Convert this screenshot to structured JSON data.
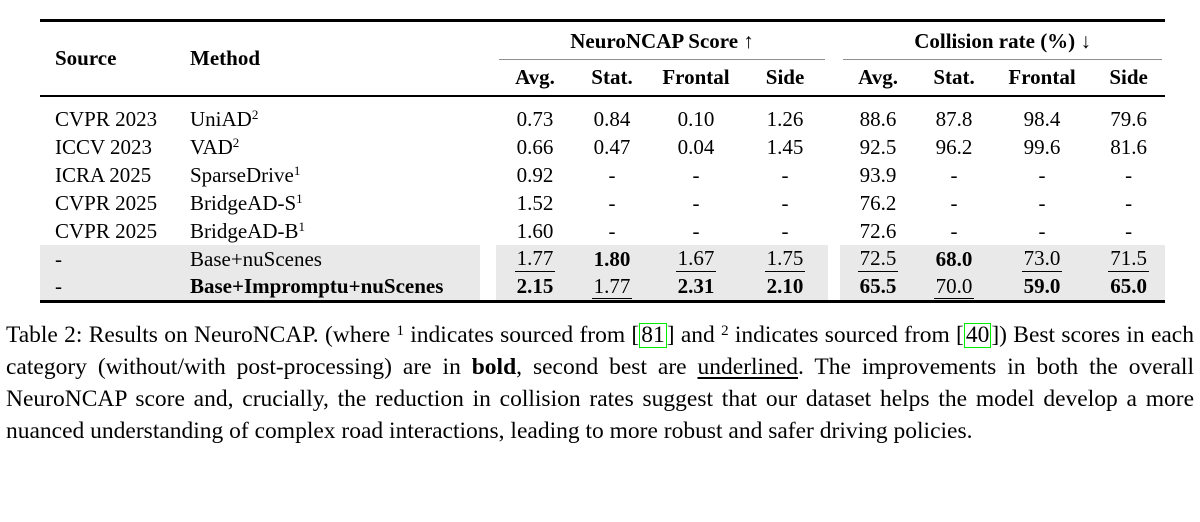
{
  "colors": {
    "highlight_row": "#e9e9e9",
    "citation_box_border": "#00ee00",
    "rule": "#000000",
    "cmidrule": "#909090"
  },
  "table": {
    "column_headers": {
      "source": "Source",
      "method": "Method",
      "subcols": [
        "Avg.",
        "Stat.",
        "Frontal",
        "Side"
      ]
    },
    "group_headers": [
      {
        "label": "NeuroNCAP Score",
        "arrow": "↑"
      },
      {
        "label": "Collision rate (%)",
        "arrow": "↓"
      }
    ],
    "rows": [
      {
        "source": "CVPR 2023",
        "method": "UniAD",
        "method_sup": "2",
        "method_bold": false,
        "highlight": false,
        "cells": [
          {
            "v": "0.73"
          },
          {
            "v": "0.84"
          },
          {
            "v": "0.10"
          },
          {
            "v": "1.26"
          },
          {
            "v": "88.6"
          },
          {
            "v": "87.8"
          },
          {
            "v": "98.4"
          },
          {
            "v": "79.6"
          }
        ]
      },
      {
        "source": "ICCV 2023",
        "method": "VAD",
        "method_sup": "2",
        "method_bold": false,
        "highlight": false,
        "cells": [
          {
            "v": "0.66"
          },
          {
            "v": "0.47"
          },
          {
            "v": "0.04"
          },
          {
            "v": "1.45"
          },
          {
            "v": "92.5"
          },
          {
            "v": "96.2"
          },
          {
            "v": "99.6"
          },
          {
            "v": "81.6"
          }
        ]
      },
      {
        "source": "ICRA 2025",
        "method": "SparseDrive",
        "method_sup": "1",
        "method_bold": false,
        "highlight": false,
        "cells": [
          {
            "v": "0.92"
          },
          {
            "v": "-"
          },
          {
            "v": "-"
          },
          {
            "v": "-"
          },
          {
            "v": "93.9"
          },
          {
            "v": "-"
          },
          {
            "v": "-"
          },
          {
            "v": "-"
          }
        ]
      },
      {
        "source": "CVPR 2025",
        "method": "BridgeAD-S",
        "method_sup": "1",
        "method_bold": false,
        "highlight": false,
        "cells": [
          {
            "v": "1.52"
          },
          {
            "v": "-"
          },
          {
            "v": "-"
          },
          {
            "v": "-"
          },
          {
            "v": "76.2"
          },
          {
            "v": "-"
          },
          {
            "v": "-"
          },
          {
            "v": "-"
          }
        ]
      },
      {
        "source": "CVPR 2025",
        "method": "BridgeAD-B",
        "method_sup": "1",
        "method_bold": false,
        "highlight": false,
        "cells": [
          {
            "v": "1.60"
          },
          {
            "v": "-"
          },
          {
            "v": "-"
          },
          {
            "v": "-"
          },
          {
            "v": "72.6"
          },
          {
            "v": "-"
          },
          {
            "v": "-"
          },
          {
            "v": "-"
          }
        ]
      },
      {
        "source": "-",
        "method": "Base+nuScenes",
        "method_sup": "",
        "method_bold": false,
        "highlight": true,
        "cells": [
          {
            "v": "1.77",
            "s": "u"
          },
          {
            "v": "1.80",
            "s": "b"
          },
          {
            "v": "1.67",
            "s": "u"
          },
          {
            "v": "1.75",
            "s": "u"
          },
          {
            "v": "72.5",
            "s": "u"
          },
          {
            "v": "68.0",
            "s": "b"
          },
          {
            "v": "73.0",
            "s": "u"
          },
          {
            "v": "71.5",
            "s": "u"
          }
        ]
      },
      {
        "source": "-",
        "method": "Base+Impromptu+nuScenes",
        "method_sup": "",
        "method_bold": true,
        "highlight": true,
        "cells": [
          {
            "v": "2.15",
            "s": "b"
          },
          {
            "v": "1.77",
            "s": "u"
          },
          {
            "v": "2.31",
            "s": "b"
          },
          {
            "v": "2.10",
            "s": "b"
          },
          {
            "v": "65.5",
            "s": "b"
          },
          {
            "v": "70.0",
            "s": "u"
          },
          {
            "v": "59.0",
            "s": "b"
          },
          {
            "v": "65.0",
            "s": "b"
          }
        ]
      }
    ]
  },
  "caption": {
    "segments": [
      {
        "t": "Table 2:  Results on NeuroNCAP. (where "
      },
      {
        "t": "1",
        "s": "sup"
      },
      {
        "t": " indicates sourced from ["
      },
      {
        "t": "81",
        "s": "cite"
      },
      {
        "t": "] and "
      },
      {
        "t": "2",
        "s": "sup"
      },
      {
        "t": " indicates sourced from ["
      },
      {
        "t": "40",
        "s": "cite"
      },
      {
        "t": "]) Best scores in each category (without/with post-processing) are in "
      },
      {
        "t": "bold",
        "s": "b"
      },
      {
        "t": ", second best are "
      },
      {
        "t": "underlined",
        "s": "u"
      },
      {
        "t": ". The improvements in both the overall NeuroNCAP score and, crucially, the reduction in collision rates suggest that our dataset helps the model develop a more nuanced understanding of complex road interactions, leading to more robust and safer driving policies."
      }
    ]
  }
}
